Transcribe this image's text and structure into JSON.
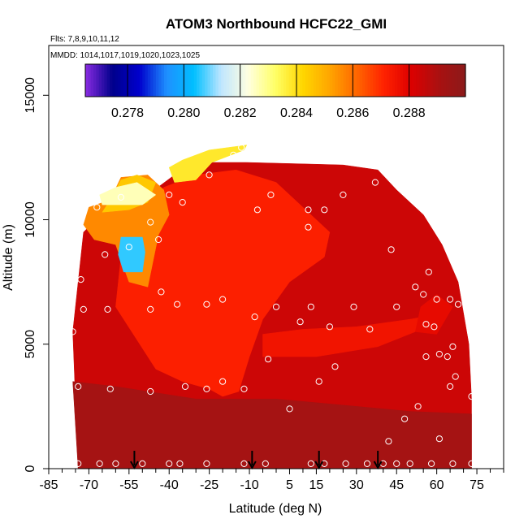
{
  "chart_data": {
    "type": "heatmap",
    "title": "ATOM3 Northbound HCFC22_GMI",
    "subtitle_lines": [
      "Flts: 7,8,9,10,11,12",
      "MMDD: 1014,1017,1019,1020,1023,1025"
    ],
    "xlabel": "Latitude (deg N)",
    "ylabel": "Altitude (m)",
    "xlim": [
      -85,
      85
    ],
    "ylim": [
      0,
      17000
    ],
    "x_ticks": [
      -85,
      -70,
      -55,
      -40,
      -25,
      -10,
      5,
      15,
      30,
      45,
      60,
      75
    ],
    "x_minor_ticks": [
      -80,
      -75,
      -65,
      -60,
      -50,
      -45,
      -35,
      -30,
      -20,
      -15,
      -5,
      0,
      10,
      20,
      25,
      35,
      40,
      50,
      55,
      65,
      70,
      80,
      85
    ],
    "y_ticks": [
      0,
      5000,
      10000,
      15000
    ],
    "colorbar": {
      "min": 0.2765,
      "max": 0.29,
      "tick_values": [
        0.278,
        0.28,
        0.282,
        0.284,
        0.286,
        0.288
      ],
      "tick_labels": [
        "0.278",
        "0.280",
        "0.282",
        "0.284",
        "0.286",
        "0.288"
      ],
      "colors": [
        "#8a2be2",
        "#00008b",
        "#0000cd",
        "#1e90ff",
        "#00bfff",
        "#bfe6ff",
        "#ffffe0",
        "#ffff66",
        "#ffd700",
        "#ffa500",
        "#ff6600",
        "#ff2200",
        "#dd0000",
        "#aa1111",
        "#8b1a1a"
      ]
    },
    "markers": {
      "type": "downward-arrows",
      "latitudes": [
        -53,
        -9,
        16,
        38
      ]
    },
    "fill_regions": [
      {
        "name": "domain-base",
        "value": 0.2884,
        "polygon": [
          [
            -74,
            0
          ],
          [
            73,
            0
          ],
          [
            73,
            2800
          ],
          [
            72,
            5000
          ],
          [
            68,
            7500
          ],
          [
            62,
            9000
          ],
          [
            55,
            10200
          ],
          [
            45,
            11200
          ],
          [
            38,
            12000
          ],
          [
            25,
            12200
          ],
          [
            -11,
            12300
          ],
          [
            -25,
            12300
          ],
          [
            -38,
            11800
          ],
          [
            -48,
            11000
          ],
          [
            -62,
            10600
          ],
          [
            -72,
            9500
          ],
          [
            -74,
            7500
          ],
          [
            -76,
            5500
          ]
        ]
      },
      {
        "name": "lower-troposphere",
        "value": 0.2892,
        "polygon": [
          [
            -74,
            0
          ],
          [
            73,
            0
          ],
          [
            73,
            2200
          ],
          [
            50,
            2300
          ],
          [
            40,
            2400
          ],
          [
            20,
            2600
          ],
          [
            0,
            2800
          ],
          [
            -30,
            2800
          ],
          [
            -60,
            3300
          ],
          [
            -76,
            3500
          ]
        ]
      },
      {
        "name": "tropical-orange-plume",
        "value": 0.2872,
        "polygon": [
          [
            -60,
            6500
          ],
          [
            -45,
            4000
          ],
          [
            -35,
            3500
          ],
          [
            -25,
            3200
          ],
          [
            -20,
            2900
          ],
          [
            -14,
            3100
          ],
          [
            -10,
            4500
          ],
          [
            -5,
            6000
          ],
          [
            5,
            7500
          ],
          [
            18,
            8500
          ],
          [
            20,
            9500
          ],
          [
            10,
            10500
          ],
          [
            0,
            11500
          ],
          [
            -15,
            12000
          ],
          [
            -30,
            11800
          ],
          [
            -42,
            11300
          ],
          [
            -50,
            10200
          ],
          [
            -58,
            8500
          ]
        ]
      },
      {
        "name": "midlevel-orange-band",
        "value": 0.2875,
        "polygon": [
          [
            -5,
            4500
          ],
          [
            15,
            4500
          ],
          [
            38,
            4900
          ],
          [
            52,
            5500
          ],
          [
            60,
            6200
          ],
          [
            50,
            6000
          ],
          [
            30,
            5700
          ],
          [
            10,
            5600
          ],
          [
            -5,
            5400
          ]
        ]
      },
      {
        "name": "south-upper-yellow",
        "value": 0.2856,
        "polygon": [
          [
            -68,
            9200
          ],
          [
            -60,
            9000
          ],
          [
            -55,
            7500
          ],
          [
            -48,
            7300
          ],
          [
            -44,
            9400
          ],
          [
            -40,
            10200
          ],
          [
            -42,
            11200
          ],
          [
            -48,
            11800
          ],
          [
            -58,
            11700
          ],
          [
            -62,
            10800
          ],
          [
            -70,
            10500
          ],
          [
            -72,
            9800
          ]
        ]
      },
      {
        "name": "south-upper-paleyellow",
        "value": 0.2845,
        "polygon": [
          [
            -65,
            10300
          ],
          [
            -55,
            10400
          ],
          [
            -48,
            10700
          ],
          [
            -45,
            11500
          ],
          [
            -52,
            11800
          ],
          [
            -58,
            11600
          ],
          [
            -62,
            10800
          ]
        ]
      },
      {
        "name": "south-top-lightblue",
        "value": 0.2826,
        "polygon": [
          [
            -65,
            10600
          ],
          [
            -50,
            10600
          ],
          [
            -45,
            11000
          ],
          [
            -52,
            11500
          ],
          [
            -60,
            11300
          ],
          [
            -66,
            11000
          ]
        ]
      },
      {
        "name": "blue-pocket",
        "value": 0.2806,
        "polygon": [
          [
            -58,
            9300
          ],
          [
            -50,
            9300
          ],
          [
            -49,
            8700
          ],
          [
            -50,
            7900
          ],
          [
            -57,
            7900
          ],
          [
            -59,
            8600
          ]
        ]
      },
      {
        "name": "tropopause-pale-top",
        "value": 0.2838,
        "polygon": [
          [
            -38,
            11500
          ],
          [
            -30,
            11600
          ],
          [
            -24,
            12300
          ],
          [
            -12,
            12800
          ],
          [
            -11,
            13000
          ],
          [
            -25,
            12800
          ],
          [
            -35,
            12400
          ],
          [
            -40,
            12100
          ]
        ]
      },
      {
        "name": "nh-midlat-orange",
        "value": 0.2878,
        "polygon": [
          [
            52,
            5500
          ],
          [
            60,
            5400
          ],
          [
            66,
            6500
          ],
          [
            60,
            7000
          ],
          [
            54,
            6500
          ]
        ]
      }
    ],
    "sample_points": [
      [
        -74,
        200
      ],
      [
        -66,
        200
      ],
      [
        -60,
        200
      ],
      [
        -50,
        200
      ],
      [
        -40,
        200
      ],
      [
        -36,
        200
      ],
      [
        -26,
        200
      ],
      [
        -12,
        200
      ],
      [
        -4,
        200
      ],
      [
        13,
        200
      ],
      [
        18,
        200
      ],
      [
        26,
        200
      ],
      [
        34,
        200
      ],
      [
        40,
        200
      ],
      [
        45,
        200
      ],
      [
        50,
        200
      ],
      [
        58,
        200
      ],
      [
        66,
        200
      ],
      [
        73,
        200
      ],
      [
        -76,
        5500
      ],
      [
        -74,
        3300
      ],
      [
        -62,
        3200
      ],
      [
        -47,
        3100
      ],
      [
        -34,
        3300
      ],
      [
        -26,
        3200
      ],
      [
        -20,
        3500
      ],
      [
        -12,
        3200
      ],
      [
        5,
        2400
      ],
      [
        16,
        3500
      ],
      [
        22,
        4100
      ],
      [
        48,
        2000
      ],
      [
        53,
        2500
      ],
      [
        61,
        1200
      ],
      [
        42,
        1100
      ],
      [
        -72,
        6400
      ],
      [
        -63,
        6400
      ],
      [
        -47,
        6400
      ],
      [
        -43,
        7100
      ],
      [
        -37,
        6600
      ],
      [
        -26,
        6600
      ],
      [
        -20,
        6800
      ],
      [
        -8,
        6100
      ],
      [
        -3,
        4400
      ],
      [
        0,
        6500
      ],
      [
        9,
        5900
      ],
      [
        13,
        6500
      ],
      [
        20,
        5700
      ],
      [
        29,
        6500
      ],
      [
        35,
        5600
      ],
      [
        45,
        6500
      ],
      [
        52,
        7300
      ],
      [
        55,
        7000
      ],
      [
        57,
        7900
      ],
      [
        56,
        5800
      ],
      [
        59,
        5700
      ],
      [
        60,
        6800
      ],
      [
        65,
        6800
      ],
      [
        68,
        6600
      ],
      [
        61,
        4600
      ],
      [
        64,
        4500
      ],
      [
        66,
        4900
      ],
      [
        67,
        3700
      ],
      [
        65,
        3300
      ],
      [
        73,
        2900
      ],
      [
        56,
        4500
      ],
      [
        -73,
        7600
      ],
      [
        -74,
        9600
      ],
      [
        -64,
        8600
      ],
      [
        -55,
        8900
      ],
      [
        -47,
        9900
      ],
      [
        -44,
        9200
      ],
      [
        -40,
        11000
      ],
      [
        -35,
        10700
      ],
      [
        -25,
        11800
      ],
      [
        -16,
        12600
      ],
      [
        -7,
        10400
      ],
      [
        -2,
        11000
      ],
      [
        12,
        10400
      ],
      [
        18,
        10400
      ],
      [
        25,
        11000
      ],
      [
        37,
        11500
      ],
      [
        43,
        8800
      ],
      [
        12,
        9700
      ],
      [
        -67,
        10500
      ],
      [
        -58,
        10900
      ],
      [
        -13,
        12900
      ]
    ]
  }
}
